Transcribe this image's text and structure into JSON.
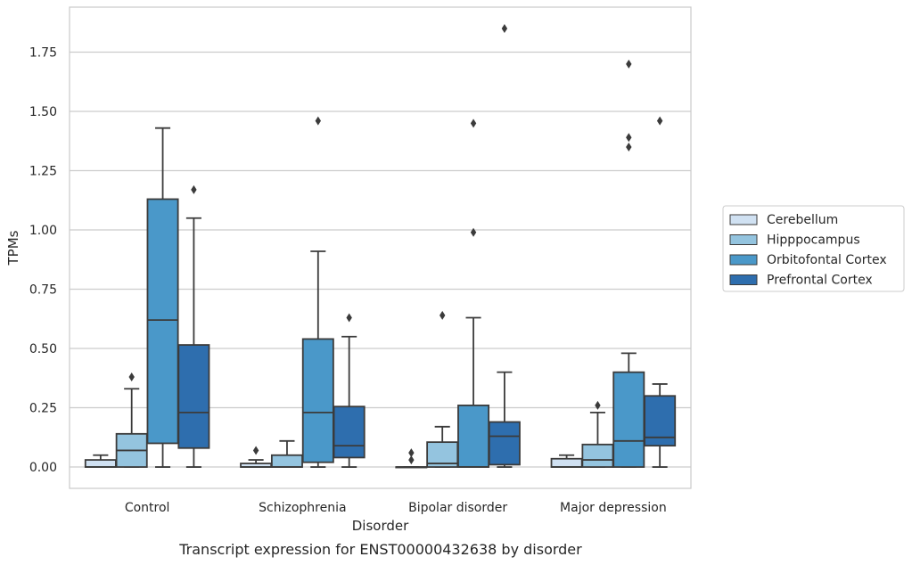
{
  "chart_data": {
    "type": "box",
    "caption": "Transcript expression for ENST00000432638 by disorder",
    "xlabel": "Disorder",
    "ylabel": "TPMs",
    "ylim": [
      -0.09,
      1.94
    ],
    "yticks": [
      0.0,
      0.25,
      0.5,
      0.75,
      1.0,
      1.25,
      1.5,
      1.75
    ],
    "ytick_labels": [
      "0.00",
      "0.25",
      "0.50",
      "0.75",
      "1.00",
      "1.25",
      "1.50",
      "1.75"
    ],
    "grid": "horizontal",
    "legend_position": "right",
    "categories": [
      "Control",
      "Schizophrenia",
      "Bipolar disorder",
      "Major depression"
    ],
    "series": [
      {
        "name": "Cerebellum",
        "color": "#d0e1f2",
        "boxes": [
          {
            "whislo": 0.0,
            "q1": 0.0,
            "med": 0.0,
            "q3": 0.03,
            "whishi": 0.05,
            "fliers": []
          },
          {
            "whislo": 0.0,
            "q1": 0.0,
            "med": 0.0,
            "q3": 0.015,
            "whishi": 0.03,
            "fliers": [
              0.07
            ]
          },
          {
            "whislo": 0.0,
            "q1": 0.0,
            "med": 0.0,
            "q3": 0.0,
            "whishi": 0.0,
            "fliers": [
              0.03,
              0.06
            ]
          },
          {
            "whislo": 0.0,
            "q1": 0.0,
            "med": 0.0,
            "q3": 0.035,
            "whishi": 0.05,
            "fliers": []
          }
        ]
      },
      {
        "name": "Hipppocampus",
        "color": "#94c4df",
        "boxes": [
          {
            "whislo": 0.0,
            "q1": 0.0,
            "med": 0.07,
            "q3": 0.14,
            "whishi": 0.33,
            "fliers": [
              0.38
            ]
          },
          {
            "whislo": 0.0,
            "q1": 0.0,
            "med": 0.0,
            "q3": 0.05,
            "whishi": 0.11,
            "fliers": []
          },
          {
            "whislo": 0.0,
            "q1": 0.0,
            "med": 0.015,
            "q3": 0.105,
            "whishi": 0.17,
            "fliers": [
              0.64
            ]
          },
          {
            "whislo": 0.0,
            "q1": 0.0,
            "med": 0.03,
            "q3": 0.095,
            "whishi": 0.23,
            "fliers": [
              0.26
            ]
          }
        ]
      },
      {
        "name": "Orbitofontal Cortex",
        "color": "#4a98c9",
        "boxes": [
          {
            "whislo": 0.0,
            "q1": 0.1,
            "med": 0.62,
            "q3": 1.13,
            "whishi": 1.43,
            "fliers": []
          },
          {
            "whislo": 0.0,
            "q1": 0.02,
            "med": 0.23,
            "q3": 0.54,
            "whishi": 0.91,
            "fliers": [
              1.46
            ]
          },
          {
            "whislo": 0.0,
            "q1": 0.0,
            "med": 0.0,
            "q3": 0.26,
            "whishi": 0.63,
            "fliers": [
              0.99,
              1.45
            ]
          },
          {
            "whislo": 0.0,
            "q1": 0.0,
            "med": 0.11,
            "q3": 0.4,
            "whishi": 0.48,
            "fliers": [
              1.35,
              1.39,
              1.7
            ]
          }
        ]
      },
      {
        "name": "Prefrontal Cortex",
        "color": "#2e6eae",
        "boxes": [
          {
            "whislo": 0.0,
            "q1": 0.08,
            "med": 0.23,
            "q3": 0.515,
            "whishi": 1.05,
            "fliers": [
              1.17
            ]
          },
          {
            "whislo": 0.0,
            "q1": 0.04,
            "med": 0.09,
            "q3": 0.255,
            "whishi": 0.55,
            "fliers": [
              0.63
            ]
          },
          {
            "whislo": 0.0,
            "q1": 0.01,
            "med": 0.13,
            "q3": 0.19,
            "whishi": 0.4,
            "fliers": [
              1.85
            ]
          },
          {
            "whislo": 0.0,
            "q1": 0.09,
            "med": 0.125,
            "q3": 0.3,
            "whishi": 0.35,
            "fliers": [
              1.46
            ]
          }
        ]
      }
    ]
  }
}
